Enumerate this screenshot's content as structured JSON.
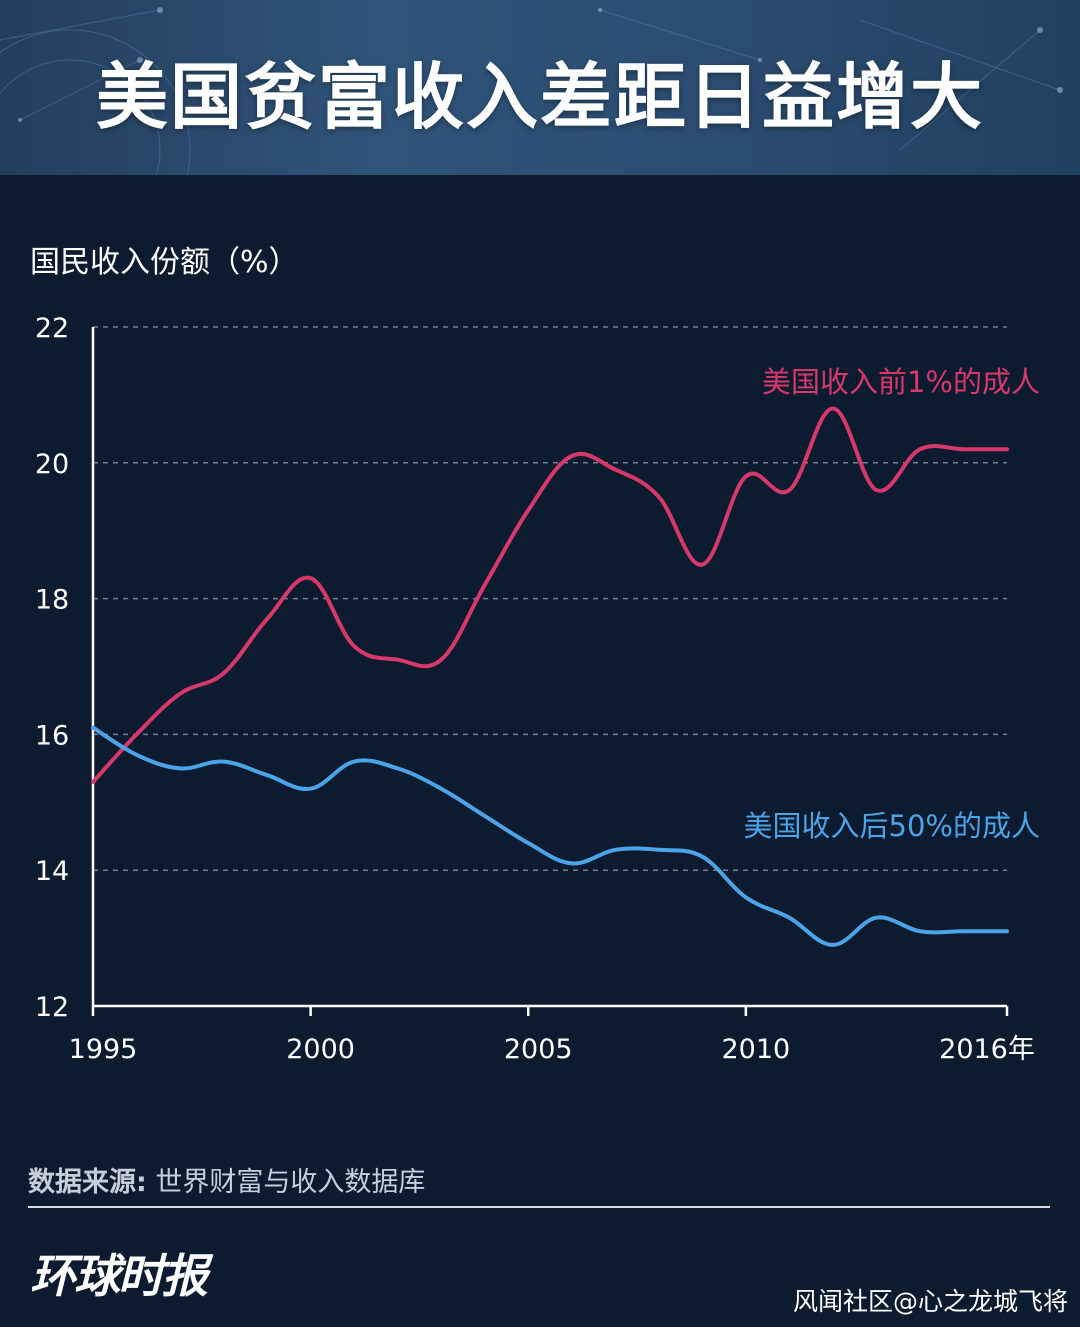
{
  "title": "美国贫富收入差距日益增大",
  "source": {
    "label": "数据来源:",
    "text": " 世界财富与收入数据库"
  },
  "logo": "环球时报",
  "credit": "风闻社区@心之龙城飞将",
  "colors": {
    "top1": "#d6386a",
    "bottom50": "#4ba3e8",
    "background": "#0c1b30",
    "grid": "#6f7f95"
  },
  "chart_data": {
    "type": "line",
    "title": "美国贫富收入差距日益增大",
    "ylabel": "国民收入份额（%）",
    "xlabel": "",
    "xlim": [
      1995,
      2016
    ],
    "ylim": [
      12,
      22
    ],
    "xticks": [
      1995,
      2000,
      2005,
      2010,
      2016
    ],
    "xtick_labels": [
      "1995",
      "2000",
      "2005",
      "2010",
      "2016年"
    ],
    "yticks": [
      12,
      14,
      16,
      18,
      20,
      22
    ],
    "grid": true,
    "series": [
      {
        "name": "美国收入前1%的成人",
        "color": "#d6386a",
        "x": [
          1995,
          1996,
          1997,
          1998,
          1999,
          2000,
          2001,
          2002,
          2003,
          2004,
          2005,
          2006,
          2007,
          2008,
          2009,
          2010,
          2011,
          2012,
          2013,
          2014,
          2015,
          2016
        ],
        "values": [
          15.3,
          16.0,
          16.6,
          16.9,
          17.7,
          18.3,
          17.3,
          17.1,
          17.1,
          18.2,
          19.3,
          20.1,
          19.9,
          19.5,
          18.5,
          19.8,
          19.6,
          20.8,
          19.6,
          20.2,
          20.2,
          20.2
        ]
      },
      {
        "name": "美国收入后50%的成人",
        "color": "#4ba3e8",
        "x": [
          1995,
          1996,
          1997,
          1998,
          1999,
          2000,
          2001,
          2002,
          2003,
          2004,
          2005,
          2006,
          2007,
          2008,
          2009,
          2010,
          2011,
          2012,
          2013,
          2014,
          2015,
          2016
        ],
        "values": [
          16.1,
          15.7,
          15.5,
          15.6,
          15.4,
          15.2,
          15.6,
          15.5,
          15.2,
          14.8,
          14.4,
          14.1,
          14.3,
          14.3,
          14.2,
          13.6,
          13.3,
          12.9,
          13.3,
          13.1,
          13.1,
          13.1
        ]
      }
    ]
  }
}
